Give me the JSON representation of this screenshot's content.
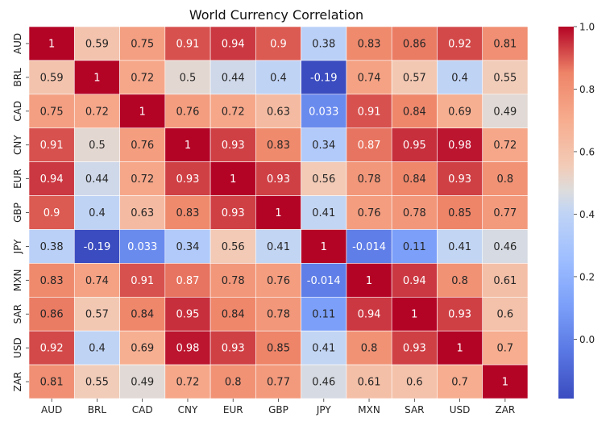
{
  "chart_data": {
    "type": "heatmap",
    "title": "World Currency Correlation",
    "xlabel": "",
    "ylabel": "",
    "x_categories": [
      "AUD",
      "BRL",
      "CAD",
      "CNY",
      "EUR",
      "GBP",
      "JPY",
      "MXN",
      "SAR",
      "USD",
      "ZAR"
    ],
    "y_categories": [
      "AUD",
      "BRL",
      "CAD",
      "CNY",
      "EUR",
      "GBP",
      "JPY",
      "MXN",
      "SAR",
      "USD",
      "ZAR"
    ],
    "value_labels": [
      [
        "1",
        "0.59",
        "0.75",
        "0.91",
        "0.94",
        "0.9",
        "0.38",
        "0.83",
        "0.86",
        "0.92",
        "0.81"
      ],
      [
        "0.59",
        "1",
        "0.72",
        "0.5",
        "0.44",
        "0.4",
        "-0.19",
        "0.74",
        "0.57",
        "0.4",
        "0.55"
      ],
      [
        "0.75",
        "0.72",
        "1",
        "0.76",
        "0.72",
        "0.63",
        "0.033",
        "0.91",
        "0.84",
        "0.69",
        "0.49"
      ],
      [
        "0.91",
        "0.5",
        "0.76",
        "1",
        "0.93",
        "0.83",
        "0.34",
        "0.87",
        "0.95",
        "0.98",
        "0.72"
      ],
      [
        "0.94",
        "0.44",
        "0.72",
        "0.93",
        "1",
        "0.93",
        "0.56",
        "0.78",
        "0.84",
        "0.93",
        "0.8"
      ],
      [
        "0.9",
        "0.4",
        "0.63",
        "0.83",
        "0.93",
        "1",
        "0.41",
        "0.76",
        "0.78",
        "0.85",
        "0.77"
      ],
      [
        "0.38",
        "-0.19",
        "0.033",
        "0.34",
        "0.56",
        "0.41",
        "1",
        "-0.014",
        "0.11",
        "0.41",
        "0.46"
      ],
      [
        "0.83",
        "0.74",
        "0.91",
        "0.87",
        "0.78",
        "0.76",
        "-0.014",
        "1",
        "0.94",
        "0.8",
        "0.61"
      ],
      [
        "0.86",
        "0.57",
        "0.84",
        "0.95",
        "0.84",
        "0.78",
        "0.11",
        "0.94",
        "1",
        "0.93",
        "0.6"
      ],
      [
        "0.92",
        "0.4",
        "0.69",
        "0.98",
        "0.93",
        "0.85",
        "0.41",
        "0.8",
        "0.93",
        "1",
        "0.7"
      ],
      [
        "0.81",
        "0.55",
        "0.49",
        "0.72",
        "0.8",
        "0.77",
        "0.46",
        "0.61",
        "0.6",
        "0.7",
        "1"
      ]
    ],
    "colorbar": {
      "colormap": "coolwarm",
      "vmin": -0.19,
      "vmax": 1.0,
      "ticks": [
        "0.0",
        "0.2",
        "0.4",
        "0.6",
        "0.8",
        "1.0"
      ]
    },
    "grid": false,
    "legend": "colorbar-right"
  }
}
